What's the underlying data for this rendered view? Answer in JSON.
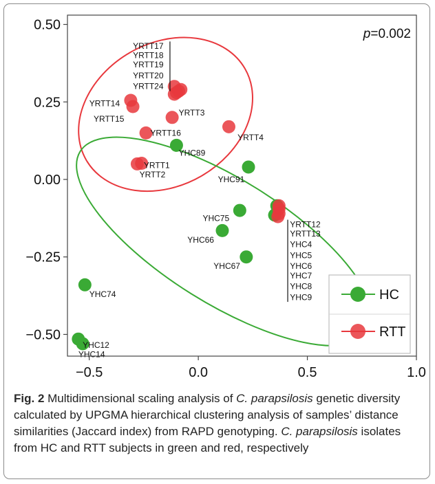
{
  "chart_data": {
    "type": "scatter",
    "annotation": "p=0.002",
    "annotation_prefix": "p",
    "annotation_value": "=0.002",
    "xlim": [
      -0.6,
      1.0
    ],
    "ylim": [
      -0.57,
      0.53
    ],
    "x_ticks": [
      -0.5,
      0.0,
      0.5,
      1.0
    ],
    "x_tick_labels": [
      "−0.5",
      "0.0",
      "0.5",
      "1.0"
    ],
    "y_ticks": [
      0.5,
      0.25,
      0.0,
      -0.25,
      -0.5
    ],
    "y_tick_labels": [
      "0.50",
      "0.25",
      "0.00",
      "−0.25",
      "−0.50"
    ],
    "legend_position": "bottom-right",
    "grid": false,
    "series": [
      {
        "name": "HC",
        "color": "#3aaa35",
        "points": [
          {
            "x": -0.1,
            "y": 0.11
          },
          {
            "x": 0.23,
            "y": 0.04
          },
          {
            "x": 0.19,
            "y": -0.1
          },
          {
            "x": 0.11,
            "y": -0.165
          },
          {
            "x": 0.22,
            "y": -0.25
          },
          {
            "x": 0.35,
            "y": -0.115
          },
          {
            "x": 0.36,
            "y": -0.085
          },
          {
            "x": -0.52,
            "y": -0.34
          },
          {
            "x": -0.55,
            "y": -0.515
          },
          {
            "x": -0.53,
            "y": -0.53
          }
        ]
      },
      {
        "name": "RTT",
        "color": "#e8383d",
        "points": [
          {
            "x": -0.31,
            "y": 0.255
          },
          {
            "x": -0.3,
            "y": 0.235
          },
          {
            "x": -0.11,
            "y": 0.3
          },
          {
            "x": -0.08,
            "y": 0.29
          },
          {
            "x": -0.11,
            "y": 0.275
          },
          {
            "x": -0.1,
            "y": 0.28
          },
          {
            "x": -0.09,
            "y": 0.285
          },
          {
            "x": -0.12,
            "y": 0.2
          },
          {
            "x": 0.14,
            "y": 0.17
          },
          {
            "x": -0.24,
            "y": 0.15
          },
          {
            "x": -0.28,
            "y": 0.05
          },
          {
            "x": -0.26,
            "y": 0.052
          },
          {
            "x": 0.37,
            "y": -0.085
          },
          {
            "x": 0.37,
            "y": -0.095
          },
          {
            "x": 0.365,
            "y": -0.12
          },
          {
            "x": 0.37,
            "y": -0.11
          }
        ]
      }
    ],
    "ellipses": [
      {
        "series": "RTT",
        "cx": -0.15,
        "cy": 0.21,
        "rx": 0.42,
        "ry": 0.23,
        "angle_deg": -30
      },
      {
        "series": "HC",
        "cx": 0.12,
        "cy": -0.2,
        "rx": 0.78,
        "ry": 0.2,
        "angle_deg": 32
      }
    ],
    "labels": [
      {
        "text": "YRTT17",
        "x": -0.3,
        "y": 0.43
      },
      {
        "text": "YRTT18",
        "x": -0.3,
        "y": 0.4
      },
      {
        "text": "YRTT19",
        "x": -0.3,
        "y": 0.37
      },
      {
        "text": "YRTT20",
        "x": -0.3,
        "y": 0.335
      },
      {
        "text": "YRTT24",
        "x": -0.3,
        "y": 0.3
      },
      {
        "text": "YRTT14",
        "x": -0.5,
        "y": 0.245
      },
      {
        "text": "YRTT15",
        "x": -0.48,
        "y": 0.195
      },
      {
        "text": "YRTT3",
        "x": -0.09,
        "y": 0.215
      },
      {
        "text": "YRTT16",
        "x": -0.22,
        "y": 0.15
      },
      {
        "text": "YRTT4",
        "x": 0.18,
        "y": 0.135
      },
      {
        "text": "YHC89",
        "x": -0.09,
        "y": 0.085
      },
      {
        "text": "YHC91",
        "x": 0.09,
        "y": 0.0
      },
      {
        "text": "YRTT1",
        "x": -0.25,
        "y": 0.045
      },
      {
        "text": "YRTT2",
        "x": -0.27,
        "y": 0.015
      },
      {
        "text": "YHC75",
        "x": 0.02,
        "y": -0.125
      },
      {
        "text": "YHC66",
        "x": -0.05,
        "y": -0.195
      },
      {
        "text": "YHC67",
        "x": 0.07,
        "y": -0.28
      },
      {
        "text": "YHC74",
        "x": -0.5,
        "y": -0.37
      },
      {
        "text": "YHC12",
        "x": -0.53,
        "y": -0.535
      },
      {
        "text": "YHC14",
        "x": -0.55,
        "y": -0.565
      },
      {
        "text": "YRTT12",
        "x": 0.42,
        "y": -0.145
      },
      {
        "text": "YRTT13",
        "x": 0.42,
        "y": -0.175
      },
      {
        "text": "YHC4",
        "x": 0.42,
        "y": -0.21
      },
      {
        "text": "YHC5",
        "x": 0.42,
        "y": -0.245
      },
      {
        "text": "YHC6",
        "x": 0.42,
        "y": -0.28
      },
      {
        "text": "YHC7",
        "x": 0.42,
        "y": -0.31
      },
      {
        "text": "YHC8",
        "x": 0.42,
        "y": -0.345
      },
      {
        "text": "YHC9",
        "x": 0.42,
        "y": -0.38
      }
    ],
    "leader_lines": [
      {
        "x": -0.13,
        "y1": 0.445,
        "y2": 0.285
      },
      {
        "x": 0.41,
        "y1": -0.13,
        "y2": -0.395
      }
    ]
  },
  "caption": {
    "label": "Fig. 2",
    "t1": " Multidimensional scaling analysis of ",
    "species1": "C. parapsilosis",
    "t2": " genetic diversity calculated by UPGMA hierarchical clustering analysis of samples’ distance similarities (Jaccard index) from RAPD genotyping. ",
    "species2": "C. parapsilosis",
    "t3": " isolates from HC and RTT subjects in green and red, respectively"
  }
}
